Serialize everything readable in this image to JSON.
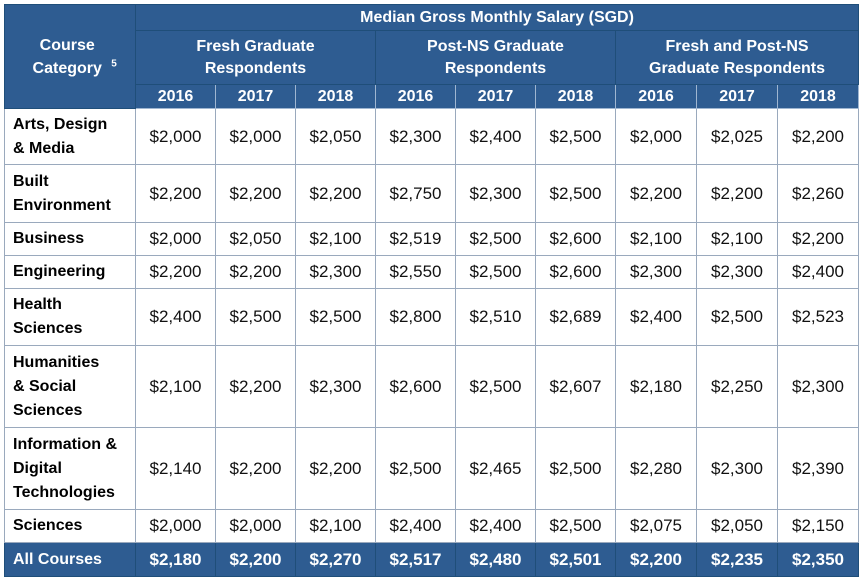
{
  "header": {
    "main_title": "Median Gross Monthly Salary (SGD)",
    "course_category_label": "Course Category",
    "course_category_sup": "5",
    "groups": [
      "Fresh Graduate Respondents",
      "Post-NS Graduate Respondents",
      "Fresh and Post-NS Graduate Respondents"
    ],
    "years": [
      "2016",
      "2017",
      "2018",
      "2016",
      "2017",
      "2018",
      "2016",
      "2017",
      "2018"
    ]
  },
  "rows": [
    {
      "category": "Arts, Design & Media",
      "values": [
        "$2,000",
        "$2,000",
        "$2,050",
        "$2,300",
        "$2,400",
        "$2,500",
        "$2,000",
        "$2,025",
        "$2,200"
      ]
    },
    {
      "category": "Built Environment",
      "values": [
        "$2,200",
        "$2,200",
        "$2,200",
        "$2,750",
        "$2,300",
        "$2,500",
        "$2,200",
        "$2,200",
        "$2,260"
      ]
    },
    {
      "category": "Business",
      "values": [
        "$2,000",
        "$2,050",
        "$2,100",
        "$2,519",
        "$2,500",
        "$2,600",
        "$2,100",
        "$2,100",
        "$2,200"
      ]
    },
    {
      "category": "Engineering",
      "values": [
        "$2,200",
        "$2,200",
        "$2,300",
        "$2,550",
        "$2,500",
        "$2,600",
        "$2,300",
        "$2,300",
        "$2,400"
      ]
    },
    {
      "category": "Health Sciences",
      "values": [
        "$2,400",
        "$2,500",
        "$2,500",
        "$2,800",
        "$2,510",
        "$2,689",
        "$2,400",
        "$2,500",
        "$2,523"
      ]
    },
    {
      "category": "Humanities & Social Sciences",
      "values": [
        "$2,100",
        "$2,200",
        "$2,300",
        "$2,600",
        "$2,500",
        "$2,607",
        "$2,180",
        "$2,250",
        "$2,300"
      ]
    },
    {
      "category": "Information & Digital Technologies",
      "values": [
        "$2,140",
        "$2,200",
        "$2,200",
        "$2,500",
        "$2,465",
        "$2,500",
        "$2,280",
        "$2,300",
        "$2,390"
      ]
    },
    {
      "category": "Sciences",
      "values": [
        "$2,000",
        "$2,000",
        "$2,100",
        "$2,400",
        "$2,400",
        "$2,500",
        "$2,075",
        "$2,050",
        "$2,150"
      ]
    }
  ],
  "total": {
    "category": "All Courses",
    "values": [
      "$2,180",
      "$2,200",
      "$2,270",
      "$2,517",
      "$2,480",
      "$2,501",
      "$2,200",
      "$2,235",
      "$2,350"
    ]
  },
  "colors": {
    "header_bg": "#2e5c91",
    "border": "#1f4e79"
  }
}
